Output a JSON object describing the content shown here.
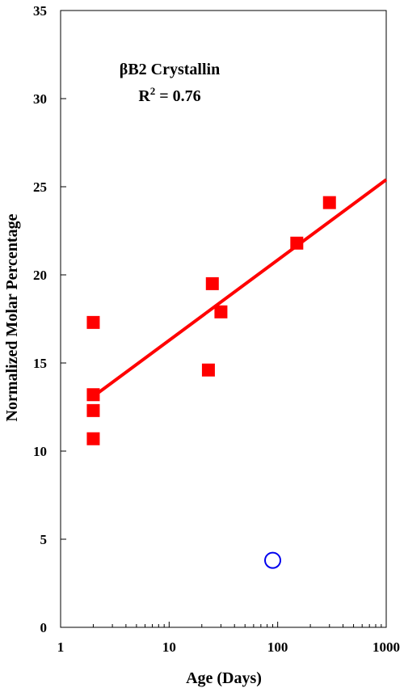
{
  "chart_data": {
    "type": "scatter",
    "title": "",
    "xlabel": "Age (Days)",
    "ylabel": "Normalized Molar Percentage",
    "x_scale": "log",
    "xlim": [
      1,
      1000
    ],
    "ylim": [
      0,
      35
    ],
    "x_ticks": [
      1,
      10,
      100,
      1000
    ],
    "x_tick_labels": [
      "1",
      "10",
      "100",
      "1000"
    ],
    "y_ticks": [
      0,
      5,
      10,
      15,
      20,
      25,
      30,
      35
    ],
    "y_tick_labels": [
      "0",
      "5",
      "10",
      "15",
      "20",
      "25",
      "30",
      "35"
    ],
    "grid": false,
    "annotations": {
      "protein": "βB2 Crystallin",
      "r2_prefix": "R",
      "r2_sup": "2",
      "r2_suffix": " = 0.76"
    },
    "series": [
      {
        "marker": "filled-square",
        "color": "#ff0000",
        "points": [
          {
            "x": 2,
            "y": 17.3
          },
          {
            "x": 2,
            "y": 13.2
          },
          {
            "x": 2,
            "y": 12.3
          },
          {
            "x": 2,
            "y": 10.7
          },
          {
            "x": 23,
            "y": 14.6
          },
          {
            "x": 25,
            "y": 19.5
          },
          {
            "x": 30,
            "y": 17.9
          },
          {
            "x": 150,
            "y": 21.8
          },
          {
            "x": 300,
            "y": 24.1
          }
        ]
      },
      {
        "marker": "open-circle",
        "color": "#0000ee",
        "points": [
          {
            "x": 90,
            "y": 3.8
          }
        ]
      }
    ],
    "trendline": {
      "color": "#ff0000",
      "from": {
        "x": 2,
        "y": 13.1
      },
      "to": {
        "x": 1000,
        "y": 25.4
      }
    }
  }
}
